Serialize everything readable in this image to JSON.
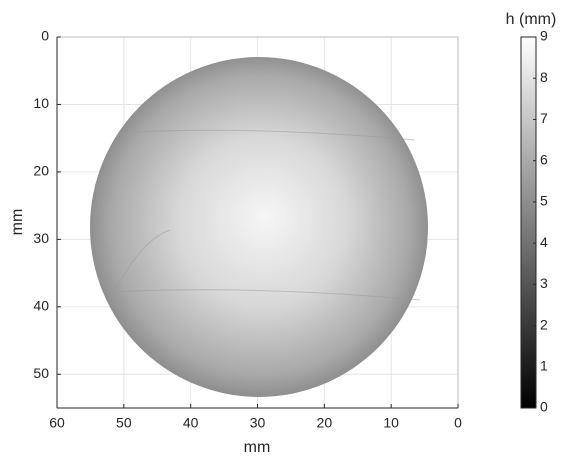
{
  "chart_data": {
    "type": "heatmap",
    "xlabel": "mm",
    "ylabel": "mm",
    "xlim": [
      60,
      0
    ],
    "ylim": [
      55,
      0
    ],
    "xticks": [
      60,
      50,
      40,
      30,
      20,
      10,
      0
    ],
    "yticks": [
      0,
      10,
      20,
      30,
      40,
      50
    ],
    "grid": true,
    "colorbar": {
      "label": "h (mm)",
      "lim": [
        0,
        9
      ],
      "ticks": [
        0,
        1,
        2,
        3,
        4,
        5,
        6,
        7,
        8,
        9
      ],
      "colormap": "gray"
    }
  }
}
